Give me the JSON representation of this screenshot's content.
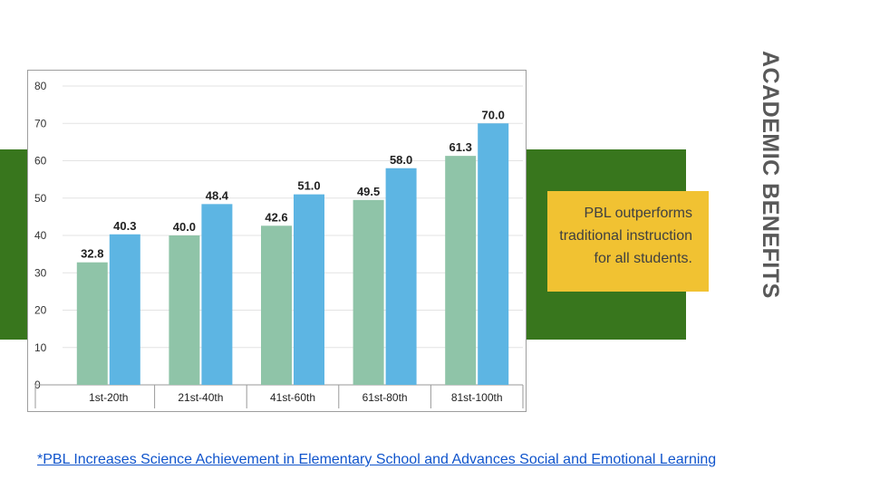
{
  "slide": {
    "title": "ACADEMIC BENEFITS",
    "callout": "PBL outperforms traditional instruction for all students.",
    "source_link": "*PBL Increases Science Achievement in Elementary School and Advances Social and Emotional Learning"
  },
  "colors": {
    "band": "#38761d",
    "callout_bg": "#f1c232",
    "series_1": "#8fc4a8",
    "series_2": "#5db5e3",
    "link": "#1155cc"
  },
  "chart_data": {
    "type": "bar",
    "categories": [
      "1st-20th",
      "21st-40th",
      "41st-60th",
      "61st-80th",
      "81st-100th"
    ],
    "series": [
      {
        "values": [
          32.8,
          40.0,
          42.6,
          49.5,
          61.3
        ]
      },
      {
        "values": [
          40.3,
          48.4,
          51.0,
          58.0,
          70.0
        ]
      }
    ],
    "value_labels": [
      [
        "32.8",
        "40.0",
        "42.6",
        "49.5",
        "61.3"
      ],
      [
        "40.3",
        "48.4",
        "51.0",
        "58.0",
        "70.0"
      ]
    ],
    "ylim": [
      0,
      80
    ],
    "yticks": [
      0,
      10,
      20,
      30,
      40,
      50,
      60,
      70,
      80
    ],
    "grid": true,
    "legend": "none"
  }
}
